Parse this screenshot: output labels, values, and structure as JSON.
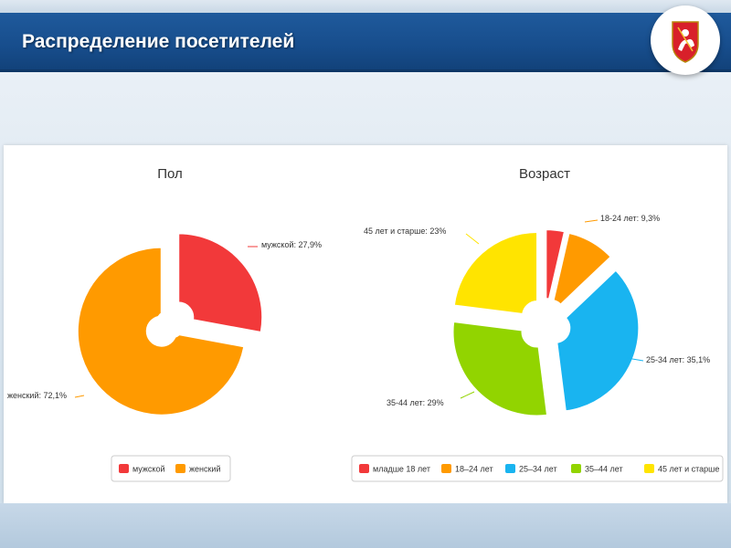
{
  "slide": {
    "title": "Распределение посетителей"
  },
  "emblem": {
    "icon": "moscow-coat-of-arms-icon"
  },
  "chart_data": [
    {
      "type": "pie",
      "title": "Пол",
      "categories": [
        "мужской",
        "женский"
      ],
      "values": [
        27.9,
        72.1
      ],
      "data_labels": [
        "мужской: 27,9%",
        "женский: 72,1%"
      ],
      "colors": [
        "#f2393a",
        "#ff9a00"
      ],
      "legend": {
        "position": "bottom",
        "entries": [
          "мужской",
          "женский"
        ]
      }
    },
    {
      "type": "pie",
      "title": "Возраст",
      "categories": [
        "младше 18 лет",
        "18-24 лет",
        "25-34 лет",
        "35-44 лет",
        "45 лет и старше"
      ],
      "values": [
        3.6,
        9.3,
        35.1,
        29,
        23
      ],
      "data_labels": [
        "",
        "18-24 лет: 9,3%",
        "25-34 лет: 35,1%",
        "35-44 лет: 29%",
        "45 лет и старше: 23%"
      ],
      "colors": [
        "#f2393a",
        "#ff9a00",
        "#19b4f0",
        "#92d400",
        "#ffe400"
      ],
      "legend": {
        "position": "bottom",
        "entries": [
          "младше 18 лет",
          "18–24 лет",
          "25–34 лет",
          "35–44 лет",
          "45 лет и старше"
        ]
      }
    }
  ]
}
